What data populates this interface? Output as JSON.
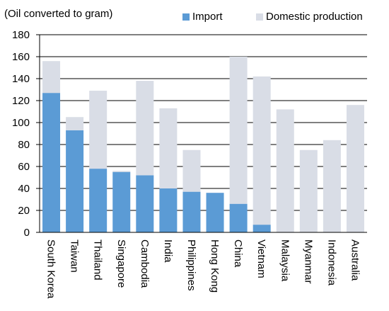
{
  "chart_data": {
    "type": "bar",
    "stacked": true,
    "title": "",
    "unit_label": "(Oil converted to gram)",
    "xlabel": "",
    "ylabel": "",
    "ylim": [
      0,
      180
    ],
    "yticks": [
      0,
      20,
      40,
      60,
      80,
      100,
      120,
      140,
      160,
      180
    ],
    "grid": "horizontal",
    "legend_position": "top",
    "categories": [
      "South Korea",
      "Taiwan",
      "Thailand",
      "Singapore",
      "Cambodia",
      "India",
      "Philippines",
      "Hong Kong",
      "China",
      "Vietnam",
      "Malaysia",
      "Myanmar",
      "Indonesia",
      "Australia"
    ],
    "series": [
      {
        "name": "Import",
        "color": "#5b9bd5",
        "values": [
          127,
          93,
          58,
          55,
          52,
          40,
          37,
          36,
          26,
          7,
          0,
          0,
          0,
          0
        ]
      },
      {
        "name": "Domestic production",
        "color": "#d9dde6",
        "values": [
          29,
          12,
          71,
          1,
          86,
          73,
          38,
          0,
          134,
          135,
          112,
          75,
          84,
          116
        ]
      }
    ]
  }
}
